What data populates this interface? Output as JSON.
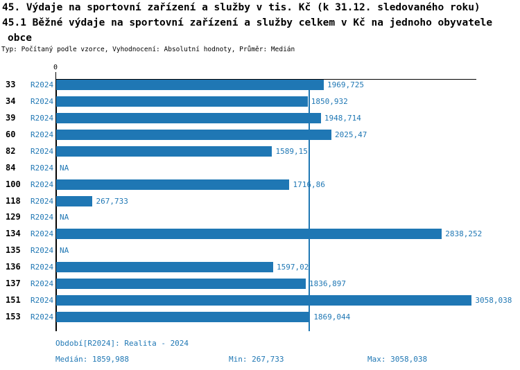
{
  "title": {
    "line1": "45. Výdaje na sportovní zařízení a služby v tis. Kč (k 31.12. sledovaného roku)",
    "line2": "45.1 Běžné výdaje na sportovní zařízení a služby celkem v Kč na jednoho obyvatele",
    "line3": "obce",
    "subtitle": "Typ: Počítaný podle vzorce, Vyhodnocení: Absolutní hodnoty, Průměr: Medián"
  },
  "chart_data": {
    "type": "bar",
    "orientation": "horizontal",
    "categories": [
      "33",
      "34",
      "39",
      "60",
      "82",
      "84",
      "100",
      "118",
      "129",
      "134",
      "135",
      "136",
      "137",
      "151",
      "153"
    ],
    "series_label": "R2024",
    "values": [
      1969.725,
      1850.932,
      1948.714,
      2025.47,
      1589.15,
      null,
      1716.86,
      267.733,
      null,
      2838.252,
      null,
      1597.02,
      1836.897,
      3058.038,
      1869.044
    ],
    "value_labels": [
      "1969,725",
      "1850,932",
      "1948,714",
      "2025,47",
      "1589,15",
      "NA",
      "1716,86",
      "267,733",
      "NA",
      "2838,252",
      "NA",
      "1597,02",
      "1836,897",
      "3058,038",
      "1869,044"
    ],
    "na_label": "NA",
    "xlim": [
      0,
      3092
    ],
    "x_tick_labels": [
      "0"
    ],
    "median_value": 1859.988,
    "bar_color": "#1f77b4",
    "grid": false,
    "legend_position": "bottom"
  },
  "footer": {
    "period": "Období[R2024]: Realita - 2024",
    "median": "Medián: 1859,988",
    "min": "Min: 267,733",
    "max": "Max: 3058,038"
  },
  "colors": {
    "accent": "#1f77b4",
    "text": "#000000",
    "background": "#ffffff"
  }
}
